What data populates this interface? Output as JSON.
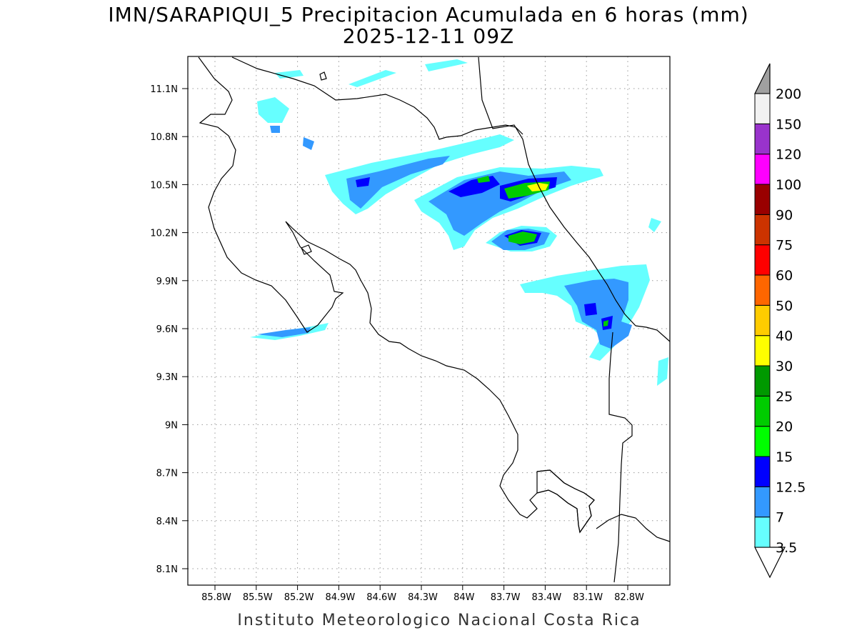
{
  "title": {
    "line1": "IMN/SARAPIQUI_5 Precipitacion Acumulada en 6 horas (mm)",
    "line2": "2025-12-11 09Z"
  },
  "footer": "Instituto Meteorologico Nacional Costa Rica",
  "map": {
    "lat_ticks": [
      "11.1N",
      "10.8N",
      "10.5N",
      "10.2N",
      "9.9N",
      "9.6N",
      "9.3N",
      "9N",
      "8.7N",
      "8.4N",
      "8.1N"
    ],
    "lon_ticks": [
      "85.8W",
      "85.5W",
      "85.2W",
      "84.9W",
      "84.6W",
      "84.3W",
      "84W",
      "83.7W",
      "83.4W",
      "83.1W",
      "82.8W"
    ],
    "grid": true
  },
  "colorbar": {
    "labels": [
      "3.5",
      "7",
      "12.5",
      "15",
      "20",
      "25",
      "30",
      "40",
      "50",
      "60",
      "75",
      "90",
      "100",
      "120",
      "150",
      "200"
    ],
    "colors": [
      "#66ffff",
      "#3399ff",
      "#0000ff",
      "#00ff00",
      "#00cc00",
      "#009900",
      "#ffff00",
      "#ffcc00",
      "#ff6600",
      "#ff0000",
      "#cc3300",
      "#990000",
      "#ff00ff",
      "#9933cc",
      "#f2f2f2"
    ],
    "over_color": "#a0a0a0",
    "under_color": "#ffffff"
  }
}
